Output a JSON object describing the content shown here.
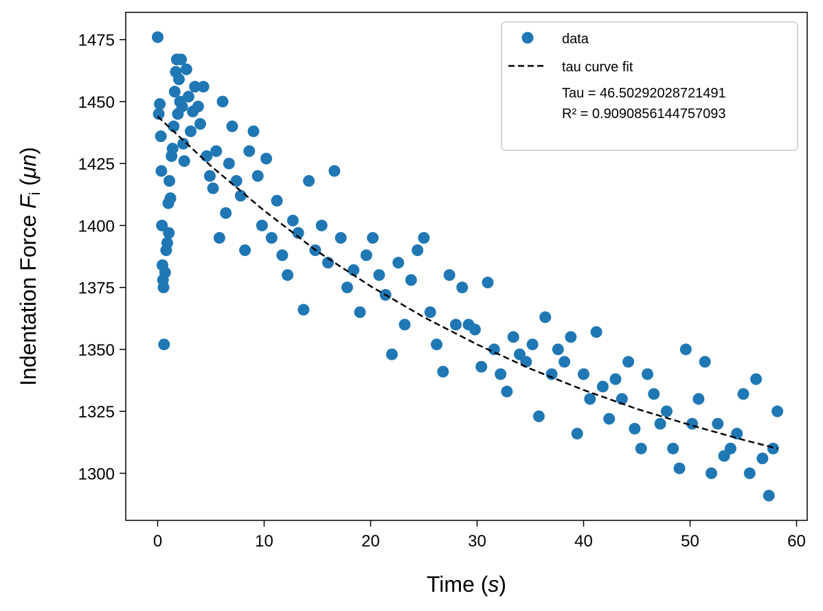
{
  "chart_data": {
    "type": "scatter",
    "title": "",
    "xlabel": "Time",
    "xlabel_unit": "s",
    "ylabel": "Indentation Force",
    "ylabel_symbol": "F",
    "ylabel_subscript": "i",
    "ylabel_unit": "μn",
    "xlim": [
      -3,
      61
    ],
    "ylim": [
      1281,
      1486
    ],
    "xticks": [
      0,
      10,
      20,
      30,
      40,
      50,
      60
    ],
    "yticks": [
      1300,
      1325,
      1350,
      1375,
      1400,
      1425,
      1450,
      1475
    ],
    "grid": false,
    "legend_position": "top-right",
    "colors": {
      "data": "#1f77b4",
      "fit": "#000000"
    },
    "series": [
      {
        "name": "data",
        "kind": "scatter",
        "x": [
          0.0,
          0.1,
          0.2,
          0.3,
          0.35,
          0.4,
          0.45,
          0.5,
          0.55,
          0.6,
          0.7,
          0.8,
          0.9,
          1.0,
          1.05,
          1.1,
          1.2,
          1.3,
          1.4,
          1.5,
          1.6,
          1.7,
          1.8,
          1.9,
          2.0,
          2.1,
          2.2,
          2.3,
          2.4,
          2.5,
          2.7,
          2.9,
          3.1,
          3.3,
          3.5,
          3.8,
          4.0,
          4.3,
          4.6,
          4.9,
          5.2,
          5.5,
          5.8,
          6.1,
          6.4,
          6.7,
          7.0,
          7.4,
          7.8,
          8.2,
          8.6,
          9.0,
          9.4,
          9.8,
          10.2,
          10.7,
          11.2,
          11.7,
          12.2,
          12.7,
          13.2,
          13.7,
          14.2,
          14.8,
          15.4,
          16.0,
          16.6,
          17.2,
          17.8,
          18.4,
          19.0,
          19.6,
          20.2,
          20.8,
          21.4,
          22.0,
          22.6,
          23.2,
          23.8,
          24.4,
          25.0,
          25.6,
          26.2,
          26.8,
          27.4,
          28.0,
          28.6,
          29.2,
          29.8,
          30.4,
          31.0,
          31.6,
          32.2,
          32.8,
          33.4,
          34.0,
          34.6,
          35.2,
          35.8,
          36.4,
          37.0,
          37.6,
          38.2,
          38.8,
          39.4,
          40.0,
          40.6,
          41.2,
          41.8,
          42.4,
          43.0,
          43.6,
          44.2,
          44.8,
          45.4,
          46.0,
          46.6,
          47.2,
          47.8,
          48.4,
          49.0,
          49.6,
          50.2,
          50.8,
          51.4,
          52.0,
          52.6,
          53.2,
          53.8,
          54.4,
          55.0,
          55.6,
          56.2,
          56.8,
          57.4,
          57.8,
          58.2
        ],
        "y": [
          1476,
          1445,
          1449,
          1436,
          1422,
          1400,
          1384,
          1378,
          1375,
          1352,
          1381,
          1390,
          1393,
          1409,
          1397,
          1418,
          1411,
          1428,
          1431,
          1440,
          1454,
          1462,
          1467,
          1445,
          1459,
          1450,
          1467,
          1448,
          1433,
          1426,
          1463,
          1452,
          1438,
          1446,
          1456,
          1448,
          1441,
          1456,
          1428,
          1420,
          1415,
          1430,
          1395,
          1450,
          1405,
          1425,
          1440,
          1418,
          1412,
          1390,
          1430,
          1438,
          1420,
          1400,
          1427,
          1395,
          1410,
          1388,
          1380,
          1402,
          1397,
          1366,
          1418,
          1390,
          1400,
          1385,
          1422,
          1395,
          1375,
          1382,
          1365,
          1388,
          1395,
          1380,
          1372,
          1348,
          1385,
          1360,
          1378,
          1390,
          1395,
          1365,
          1352,
          1341,
          1380,
          1360,
          1375,
          1360,
          1358,
          1343,
          1377,
          1350,
          1340,
          1333,
          1355,
          1348,
          1345,
          1352,
          1323,
          1363,
          1340,
          1350,
          1345,
          1355,
          1316,
          1340,
          1330,
          1357,
          1335,
          1322,
          1338,
          1330,
          1345,
          1318,
          1310,
          1340,
          1332,
          1320,
          1325,
          1310,
          1302,
          1350,
          1320,
          1330,
          1345,
          1300,
          1320,
          1307,
          1310,
          1316,
          1332,
          1300,
          1338,
          1306,
          1291,
          1310,
          1325
        ]
      },
      {
        "name": "tau curve fit",
        "kind": "line",
        "style": "dashed",
        "x": [
          0,
          5,
          10,
          15,
          20,
          25,
          30,
          35,
          40,
          45,
          50,
          55,
          58.2
        ],
        "y": [
          1444.0,
          1424.0,
          1406.0,
          1389.5,
          1375.5,
          1363.0,
          1352.0,
          1342.2,
          1333.6,
          1326.0,
          1319.5,
          1313.5,
          1310.0
        ]
      }
    ],
    "legend_entries": [
      {
        "label": "data",
        "marker": "circle"
      },
      {
        "label": "tau curve fit",
        "marker": "dashed-line"
      }
    ],
    "annotation_lines": [
      "Tau = 46.50292028721491",
      "R² = 0.9090856144757093"
    ]
  }
}
